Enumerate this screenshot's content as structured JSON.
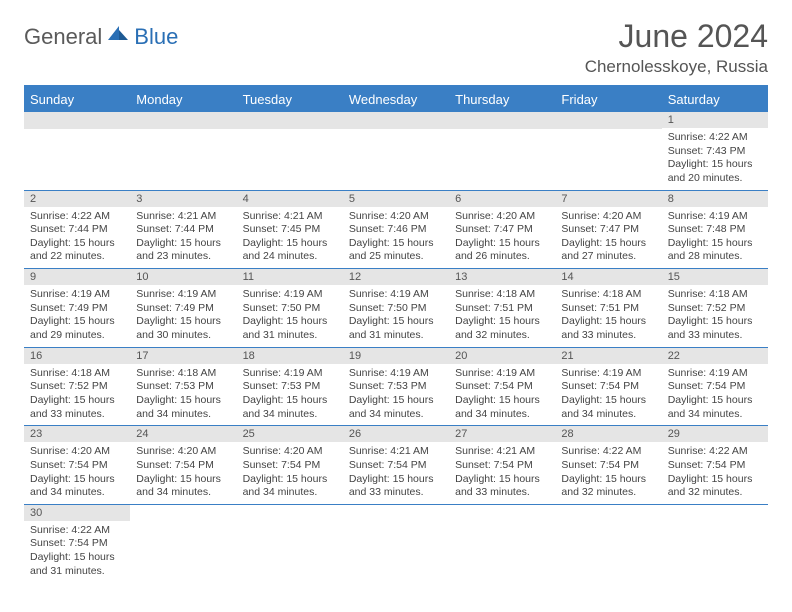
{
  "brand": {
    "first": "General",
    "second": "Blue"
  },
  "title": "June 2024",
  "location": "Chernolesskoye, Russia",
  "colors": {
    "accent": "#3a7fc5",
    "text": "#555555",
    "header_bg": "#3a7fc5",
    "daynum_bg": "#e5e5e5"
  },
  "weekdays": [
    "Sunday",
    "Monday",
    "Tuesday",
    "Wednesday",
    "Thursday",
    "Friday",
    "Saturday"
  ],
  "labels": {
    "sunrise": "Sunrise:",
    "sunset": "Sunset:",
    "daylight": "Daylight:"
  },
  "weeks": [
    [
      null,
      null,
      null,
      null,
      null,
      null,
      {
        "d": "1",
        "sr": "4:22 AM",
        "ss": "7:43 PM",
        "dl": "15 hours and 20 minutes."
      }
    ],
    [
      {
        "d": "2",
        "sr": "4:22 AM",
        "ss": "7:44 PM",
        "dl": "15 hours and 22 minutes."
      },
      {
        "d": "3",
        "sr": "4:21 AM",
        "ss": "7:44 PM",
        "dl": "15 hours and 23 minutes."
      },
      {
        "d": "4",
        "sr": "4:21 AM",
        "ss": "7:45 PM",
        "dl": "15 hours and 24 minutes."
      },
      {
        "d": "5",
        "sr": "4:20 AM",
        "ss": "7:46 PM",
        "dl": "15 hours and 25 minutes."
      },
      {
        "d": "6",
        "sr": "4:20 AM",
        "ss": "7:47 PM",
        "dl": "15 hours and 26 minutes."
      },
      {
        "d": "7",
        "sr": "4:20 AM",
        "ss": "7:47 PM",
        "dl": "15 hours and 27 minutes."
      },
      {
        "d": "8",
        "sr": "4:19 AM",
        "ss": "7:48 PM",
        "dl": "15 hours and 28 minutes."
      }
    ],
    [
      {
        "d": "9",
        "sr": "4:19 AM",
        "ss": "7:49 PM",
        "dl": "15 hours and 29 minutes."
      },
      {
        "d": "10",
        "sr": "4:19 AM",
        "ss": "7:49 PM",
        "dl": "15 hours and 30 minutes."
      },
      {
        "d": "11",
        "sr": "4:19 AM",
        "ss": "7:50 PM",
        "dl": "15 hours and 31 minutes."
      },
      {
        "d": "12",
        "sr": "4:19 AM",
        "ss": "7:50 PM",
        "dl": "15 hours and 31 minutes."
      },
      {
        "d": "13",
        "sr": "4:18 AM",
        "ss": "7:51 PM",
        "dl": "15 hours and 32 minutes."
      },
      {
        "d": "14",
        "sr": "4:18 AM",
        "ss": "7:51 PM",
        "dl": "15 hours and 33 minutes."
      },
      {
        "d": "15",
        "sr": "4:18 AM",
        "ss": "7:52 PM",
        "dl": "15 hours and 33 minutes."
      }
    ],
    [
      {
        "d": "16",
        "sr": "4:18 AM",
        "ss": "7:52 PM",
        "dl": "15 hours and 33 minutes."
      },
      {
        "d": "17",
        "sr": "4:18 AM",
        "ss": "7:53 PM",
        "dl": "15 hours and 34 minutes."
      },
      {
        "d": "18",
        "sr": "4:19 AM",
        "ss": "7:53 PM",
        "dl": "15 hours and 34 minutes."
      },
      {
        "d": "19",
        "sr": "4:19 AM",
        "ss": "7:53 PM",
        "dl": "15 hours and 34 minutes."
      },
      {
        "d": "20",
        "sr": "4:19 AM",
        "ss": "7:54 PM",
        "dl": "15 hours and 34 minutes."
      },
      {
        "d": "21",
        "sr": "4:19 AM",
        "ss": "7:54 PM",
        "dl": "15 hours and 34 minutes."
      },
      {
        "d": "22",
        "sr": "4:19 AM",
        "ss": "7:54 PM",
        "dl": "15 hours and 34 minutes."
      }
    ],
    [
      {
        "d": "23",
        "sr": "4:20 AM",
        "ss": "7:54 PM",
        "dl": "15 hours and 34 minutes."
      },
      {
        "d": "24",
        "sr": "4:20 AM",
        "ss": "7:54 PM",
        "dl": "15 hours and 34 minutes."
      },
      {
        "d": "25",
        "sr": "4:20 AM",
        "ss": "7:54 PM",
        "dl": "15 hours and 34 minutes."
      },
      {
        "d": "26",
        "sr": "4:21 AM",
        "ss": "7:54 PM",
        "dl": "15 hours and 33 minutes."
      },
      {
        "d": "27",
        "sr": "4:21 AM",
        "ss": "7:54 PM",
        "dl": "15 hours and 33 minutes."
      },
      {
        "d": "28",
        "sr": "4:22 AM",
        "ss": "7:54 PM",
        "dl": "15 hours and 32 minutes."
      },
      {
        "d": "29",
        "sr": "4:22 AM",
        "ss": "7:54 PM",
        "dl": "15 hours and 32 minutes."
      }
    ],
    [
      {
        "d": "30",
        "sr": "4:22 AM",
        "ss": "7:54 PM",
        "dl": "15 hours and 31 minutes."
      },
      null,
      null,
      null,
      null,
      null,
      null
    ]
  ]
}
